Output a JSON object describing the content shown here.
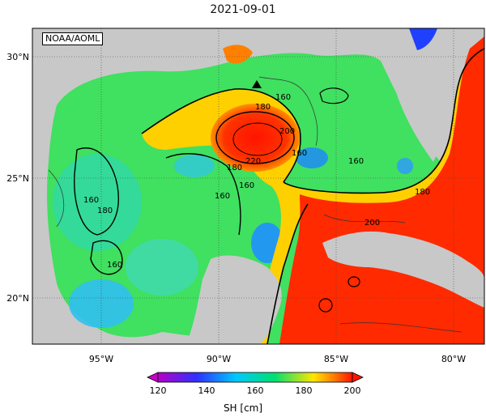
{
  "title": "2021-09-01",
  "credit": "NOAA/AOML",
  "axes": {
    "lon_ticks": [
      "95°W",
      "90°W",
      "85°W",
      "80°W"
    ],
    "lat_ticks": [
      "30°N",
      "25°N",
      "20°N"
    ]
  },
  "contour_labels": [
    "160",
    "180",
    "200",
    "220",
    "160",
    "180",
    "160",
    "160",
    "180",
    "160",
    "160",
    "180",
    "200",
    "160"
  ],
  "colorbar": {
    "label": "SH [cm]",
    "ticks": [
      "120",
      "140",
      "160",
      "180",
      "200"
    ],
    "colors": [
      "#a000c8",
      "#2020ff",
      "#00c8ff",
      "#00e070",
      "#ffe600",
      "#ff8000",
      "#ff1400"
    ]
  },
  "marker": "triangle-marker",
  "colors": {
    "land": "#c8c8c8",
    "frame": "#000000"
  }
}
